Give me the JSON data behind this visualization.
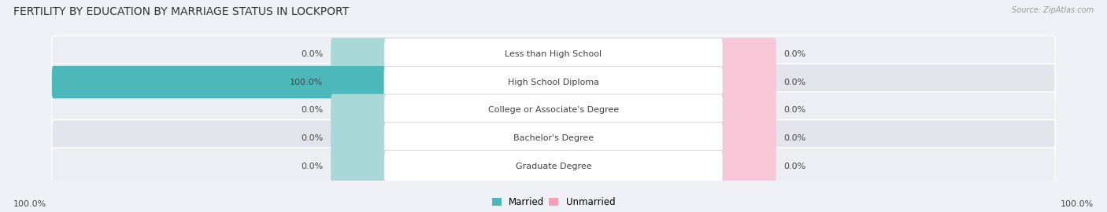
{
  "title": "FERTILITY BY EDUCATION BY MARRIAGE STATUS IN LOCKPORT",
  "source": "Source: ZipAtlas.com",
  "categories": [
    "Less than High School",
    "High School Diploma",
    "College or Associate's Degree",
    "Bachelor's Degree",
    "Graduate Degree"
  ],
  "married_values": [
    0.0,
    100.0,
    0.0,
    0.0,
    0.0
  ],
  "unmarried_values": [
    0.0,
    0.0,
    0.0,
    0.0,
    0.0
  ],
  "married_color": "#4db8ba",
  "unmarried_color": "#f4a0b8",
  "bar_bg_married_color": "#a8d8d8",
  "bar_bg_unmarried_color": "#f8c8d8",
  "row_bg_odd": "#ededf4",
  "row_bg_even": "#e4e4ed",
  "label_color": "#444444",
  "title_color": "#333333",
  "source_color": "#999999",
  "max_value": 100.0,
  "bottom_left_label": "100.0%",
  "bottom_right_label": "100.0%",
  "title_fontsize": 10,
  "label_fontsize": 8,
  "category_fontsize": 8,
  "legend_fontsize": 8.5,
  "background_color": "#f0f0f7"
}
